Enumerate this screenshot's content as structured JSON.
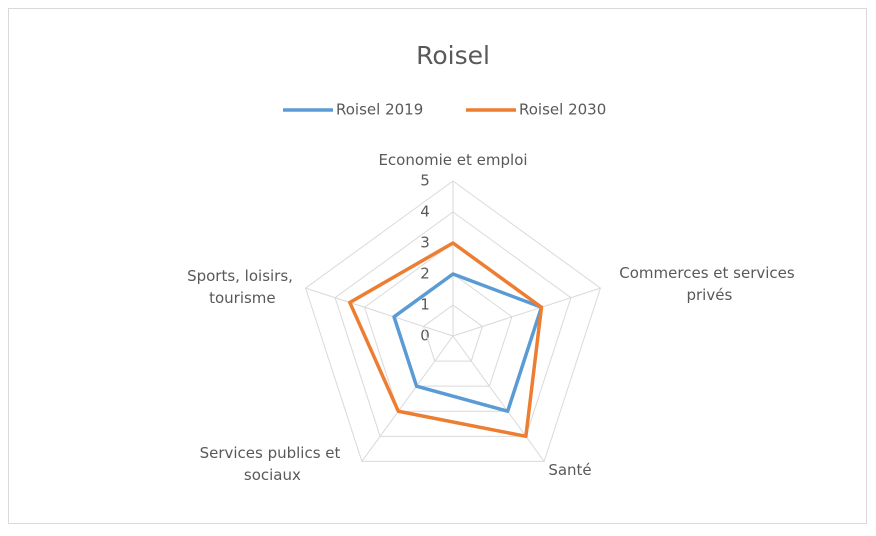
{
  "chart_data": {
    "type": "radar",
    "title": "Roisel",
    "categories": [
      "Economie et emploi",
      "Commerces et services privés",
      "Santé",
      "Services publics et sociaux",
      "Sports, loisirs, tourisme"
    ],
    "series": [
      {
        "name": "Roisel 2019",
        "color": "#5b9bd5",
        "values": [
          2,
          3,
          3,
          2,
          2
        ]
      },
      {
        "name": "Roisel 2030",
        "color": "#ed7d31",
        "values": [
          3,
          3,
          4,
          3,
          3.5
        ]
      }
    ],
    "ylim": [
      0,
      5
    ],
    "yticks": [
      0,
      1,
      2,
      3,
      4,
      5
    ],
    "grid": true,
    "legend": "top"
  }
}
